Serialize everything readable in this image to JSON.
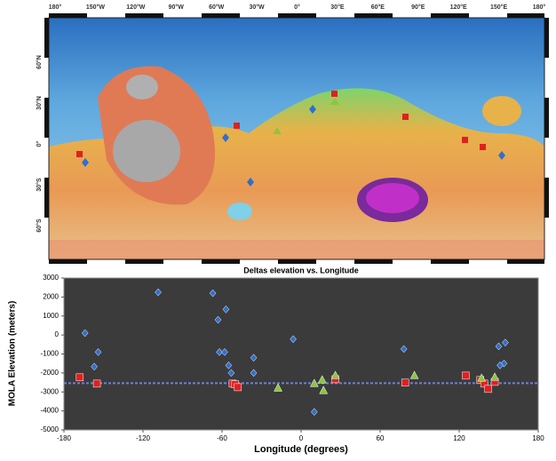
{
  "map": {
    "lon_labels": [
      "180°",
      "150°W",
      "120°W",
      "90°W",
      "60°W",
      "30°W",
      "0°",
      "30°E",
      "60°E",
      "90°E",
      "120°E",
      "150°E",
      "180°"
    ],
    "lat_labels": [
      "60°N",
      "30°N",
      "0°",
      "30°S",
      "60°S"
    ]
  },
  "chart_data": {
    "type": "scatter",
    "title": "Deltas elevation vs. Longitude",
    "x_label": "Longitude (degrees)",
    "y_label": "MOLA Elevation (meters)",
    "xlim": [
      -180,
      180
    ],
    "xticks": [
      -180,
      -120,
      -60,
      0,
      60,
      120,
      180
    ],
    "ylim": [
      -5000,
      3000
    ],
    "yticks": [
      -5000,
      -4000,
      -3000,
      -2000,
      -1000,
      0,
      1000,
      2000,
      3000
    ],
    "reference_line": {
      "value": -2540,
      "color": "#6f7fe0"
    },
    "series": [
      {
        "marker": "diamond",
        "color": "#2f6fd0",
        "x": [
          -108.5,
          -164,
          -157,
          -154,
          -67,
          -63,
          -57,
          -62,
          -58,
          -55,
          -53,
          -36,
          -36,
          -6,
          10,
          78,
          150,
          155,
          154,
          151
        ],
        "values": [
          2250,
          100,
          -1670,
          -900,
          2200,
          800,
          1350,
          -900,
          -900,
          -1600,
          -2000,
          -1200,
          -2000,
          -220,
          -4050,
          -740,
          -600,
          -400,
          -1500,
          -1600
        ]
      },
      {
        "marker": "square",
        "color": "#e02020",
        "x": [
          -168,
          -155,
          -52,
          -50,
          -48,
          26,
          79,
          125,
          136,
          139,
          142,
          147
        ],
        "values": [
          -2230,
          -2560,
          -2560,
          -2600,
          -2750,
          -2330,
          -2510,
          -2140,
          -2370,
          -2560,
          -2840,
          -2470
        ]
      },
      {
        "marker": "triangle",
        "color": "#8cc63f",
        "x": [
          -17.5,
          10,
          16,
          17,
          26,
          86,
          137,
          147
        ],
        "values": [
          -2800,
          -2560,
          -2370,
          -2930,
          -2140,
          -2140,
          -2280,
          -2230
        ]
      }
    ]
  }
}
